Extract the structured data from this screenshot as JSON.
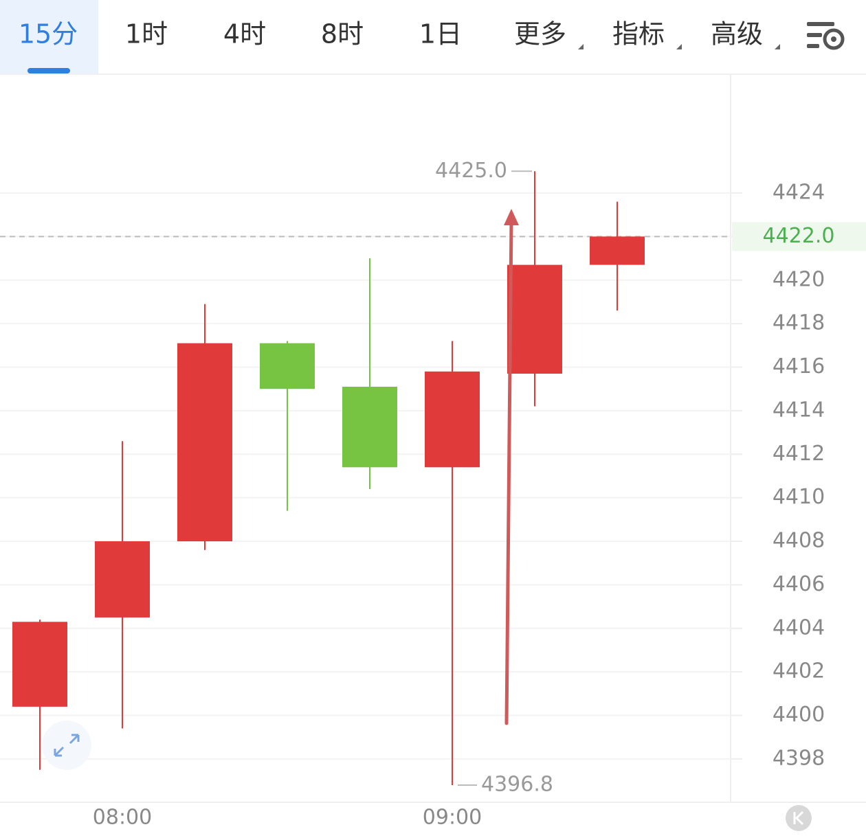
{
  "toolbar": {
    "tabs": [
      "15分",
      "1时",
      "4时",
      "8时",
      "1日",
      "更多",
      "指标",
      "高级"
    ]
  },
  "chart_data": {
    "type": "candlestick",
    "categories": [
      null,
      "08:00",
      null,
      null,
      null,
      "09:00",
      null,
      null
    ],
    "open": [
      4400.4,
      4404.5,
      4408.0,
      4417.1,
      4415.1,
      4411.4,
      4415.7,
      4420.7
    ],
    "high": [
      4404.4,
      4412.6,
      4418.9,
      4417.2,
      4421.0,
      4417.2,
      4425.0,
      4423.6
    ],
    "low": [
      4397.5,
      4399.4,
      4407.6,
      4409.4,
      4410.4,
      4396.8,
      4414.2,
      4418.6
    ],
    "close": [
      4404.3,
      4408.0,
      4417.1,
      4415.0,
      4411.4,
      4415.8,
      4420.7,
      4422.0
    ],
    "up_color": "#e03a3a",
    "down_color": "#76c442",
    "ylim": [
      4396,
      4429.5
    ],
    "yticks": [
      4398,
      4400,
      4402,
      4404,
      4406,
      4408,
      4410,
      4412,
      4414,
      4416,
      4418,
      4420,
      4422,
      4424
    ],
    "grid": true,
    "current_price": {
      "value": 4422,
      "label": "4422.0"
    },
    "annotations": [
      {
        "value": 4425,
        "label": "4425.0"
      },
      {
        "value": 4396.8,
        "label": "4396.8"
      }
    ]
  }
}
